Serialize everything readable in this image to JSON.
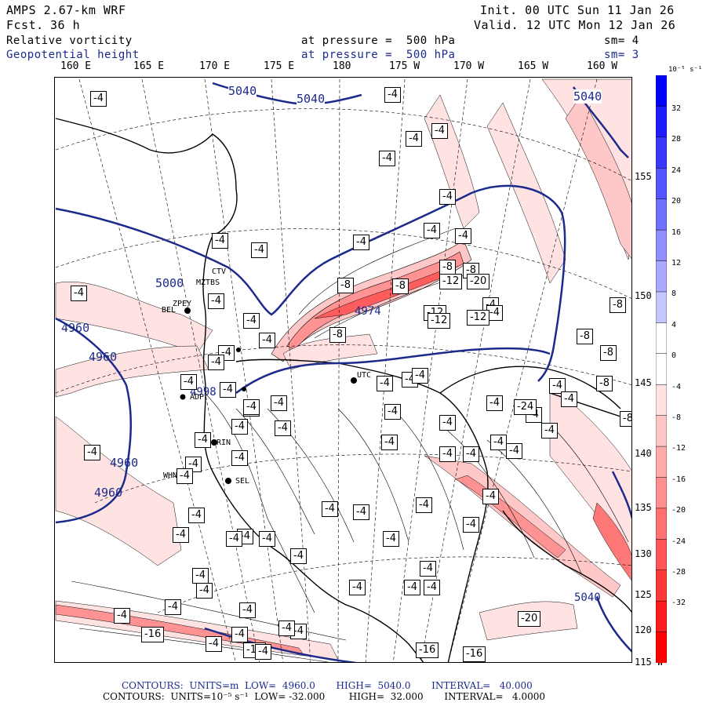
{
  "header": {
    "model": "AMPS 2.67-km WRF",
    "fcst_label": "Fcst.",
    "fcst_value": "36 h",
    "init": "Init. 00 UTC Sun 11 Jan 26",
    "valid": "Valid. 12 UTC Mon 12 Jan 26",
    "field1_name": "Relative vorticity",
    "field1_level": "at pressure =  500 hPa",
    "field1_sm": "sm= 4",
    "field2_name": "Geopotential height",
    "field2_level": "at pressure =  500 hPa",
    "field2_sm": "sm= 3"
  },
  "lon_labels": [
    "160 E",
    "165 E",
    "170 E",
    "175 E",
    "180",
    "175 W",
    "170 W",
    "165 W",
    "160 W"
  ],
  "lat_labels": [
    "155 W",
    "150 W",
    "145 W",
    "140 W",
    "135 W",
    "130 W",
    "125 W",
    "120 W",
    "115 W"
  ],
  "colorbar": {
    "unit": "10⁻⁵ s⁻¹",
    "ticks": [
      "32",
      "28",
      "24",
      "20",
      "16",
      "12",
      "8",
      "4",
      "0",
      "-4",
      "-8",
      "-12",
      "-16",
      "-20",
      "-24",
      "-28",
      "-32"
    ],
    "colors": [
      "#0000ff",
      "#1c1cff",
      "#3838ff",
      "#5555ff",
      "#7171ff",
      "#8e8eff",
      "#aaaaff",
      "#c6c6ff",
      "#ffffff",
      "#ffffff",
      "#ffe2e2",
      "#ffc6c6",
      "#ffaaaa",
      "#ff8e8e",
      "#ff7171",
      "#ff5555",
      "#ff3838",
      "#ff1c1c",
      "#ff0000"
    ]
  },
  "height_labels": [
    "5040",
    "5040",
    "5040",
    "5000",
    "4960",
    "4960",
    "4960",
    "4960",
    "4974",
    "4998",
    "5040"
  ],
  "station_labels": [
    "CTV",
    "MZTBS",
    "ZPEY",
    "BEL",
    "ADP",
    "WHN",
    "SEL",
    "RIN",
    "UTC"
  ],
  "vort_labels": [
    "-4",
    "-4",
    "-4",
    "-4",
    "-4",
    "-4",
    "-4",
    "-4",
    "-4",
    "-4",
    "-4",
    "-4",
    "-4",
    "-4",
    "-4",
    "-4",
    "-4",
    "-4",
    "-4",
    "-4",
    "-4",
    "-4",
    "-4",
    "-4",
    "-4",
    "-4",
    "-4",
    "-4",
    "-4",
    "-4",
    "-4",
    "-4",
    "-4",
    "-4",
    "-4",
    "-4",
    "-4",
    "-4",
    "-4",
    "-4",
    "-4",
    "-4",
    "-4",
    "-4",
    "-4",
    "-4",
    "-4",
    "-4",
    "-4",
    "-4",
    "-4",
    "-4",
    "-4",
    "-4",
    "-4",
    "-4",
    "-4",
    "-4",
    "-4",
    "-4",
    "-4",
    "-4",
    "-8",
    "-8",
    "-8",
    "-8",
    "-8",
    "-8",
    "-8",
    "-8",
    "-8",
    "-8",
    "-8",
    "-12",
    "-12",
    "-12",
    "-12",
    "-16",
    "-16",
    "-16",
    "-16",
    "-20",
    "-20",
    "-24",
    "-4",
    "-4",
    "-4",
    "-4",
    "-4",
    "-4",
    "-4",
    "-4",
    "-4",
    "-4",
    "-4",
    "-4",
    "-4",
    "-4",
    "-4",
    "-4",
    "-4",
    "-4",
    "-4",
    "-4"
  ],
  "footer": {
    "line1": "CONTOURS:  UNITS=m  LOW=  4960.0       HIGH=  5040.0       INTERVAL=   40.000",
    "line2": "CONTOURS:  UNITS=10⁻⁵ s⁻¹  LOW= -32.000        HIGH=  32.000       INTERVAL=   4.0000"
  }
}
